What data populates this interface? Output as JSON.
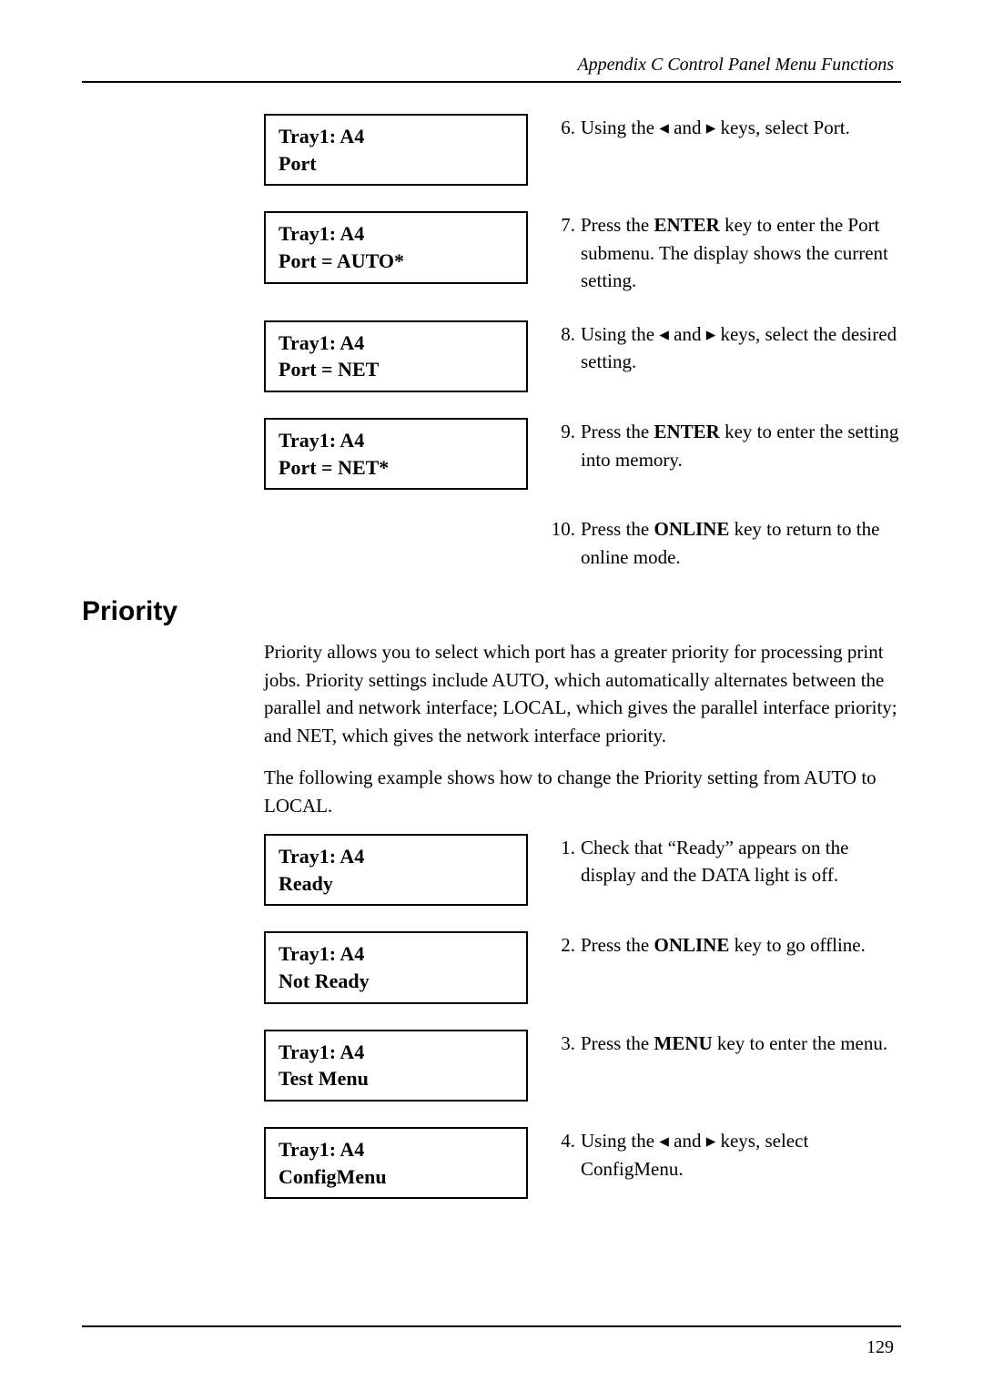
{
  "running_head": "Appendix C Control Panel Menu Functions",
  "page_number": "129",
  "section1": {
    "rows": [
      {
        "lcd1": "Tray1:  A4",
        "lcd2": "Port",
        "num": "6.",
        "text": "Using the ◂ and ▸ keys, select Port."
      },
      {
        "lcd1": "Tray1:  A4",
        "lcd2": "Port = AUTO*",
        "num": "7.",
        "text": "Press the <b>ENTER</b> key to enter the Port submenu. The display shows the current setting."
      },
      {
        "lcd1": "Tray1:  A4",
        "lcd2": "Port = NET",
        "num": "8.",
        "text": "Using the ◂ and ▸ keys, select the desired setting."
      },
      {
        "lcd1": "Tray1:  A4",
        "lcd2": "Port = NET*",
        "num": "9.",
        "text": "Press the <b>ENTER</b> key to enter the setting into memory."
      }
    ],
    "standalone": {
      "num": "10.",
      "text": "Press the <b>ONLINE</b> key to return to the online mode."
    }
  },
  "heading": "Priority",
  "para1": "Priority allows you to select which port has a greater priority for processing print jobs. Priority settings include AUTO, which automatically alternates between the parallel and network interface; LOCAL, which gives the parallel interface priority; and NET, which gives the network interface priority.",
  "para2": "The following example shows how to change the Priority setting from AUTO to LOCAL.",
  "section2": {
    "rows": [
      {
        "lcd1": "Tray1:  A4",
        "lcd2": "Ready",
        "num": "1.",
        "text": "Check that “Ready” appears on the display and the DATA light is off."
      },
      {
        "lcd1": "Tray1:  A4",
        "lcd2": "Not Ready",
        "num": "2.",
        "text": "Press the <b>ONLINE</b> key to go offline."
      },
      {
        "lcd1": "Tray1:  A4",
        "lcd2": "Test Menu",
        "num": "3.",
        "text": "Press the <b>MENU</b> key to enter the menu."
      },
      {
        "lcd1": "Tray1:  A4",
        "lcd2": "ConfigMenu",
        "num": "4.",
        "text": "Using the ◂ and ▸ keys, select ConfigMenu."
      }
    ]
  }
}
